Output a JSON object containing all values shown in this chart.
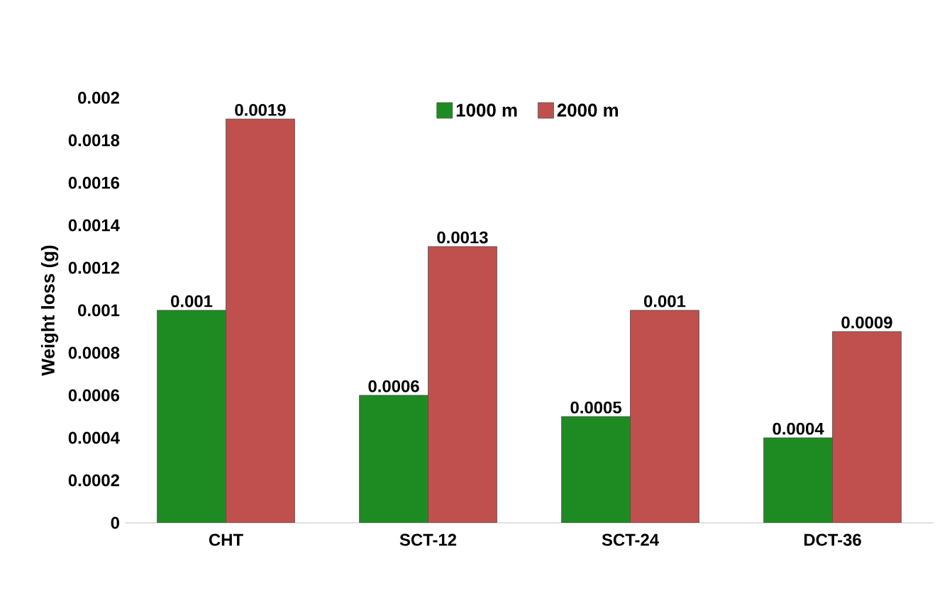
{
  "chart_data": {
    "type": "bar",
    "ylabel": "Weight loss (g)",
    "categories": [
      "CHT",
      "SCT-12",
      "SCT-24",
      "DCT-36"
    ],
    "series": [
      {
        "name": "1000 m",
        "color": "#1e8b22",
        "values": [
          0.001,
          0.0006,
          0.0005,
          0.0004
        ]
      },
      {
        "name": "2000 m",
        "color": "#c0504d",
        "values": [
          0.0019,
          0.0013,
          0.001,
          0.0009
        ]
      }
    ],
    "ylim": [
      0,
      0.002
    ],
    "yticks": [
      0,
      0.0002,
      0.0004,
      0.0006,
      0.0008,
      0.001,
      0.0012,
      0.0014,
      0.0016,
      0.0018,
      0.002
    ],
    "data_labels": true,
    "legend": "top"
  }
}
